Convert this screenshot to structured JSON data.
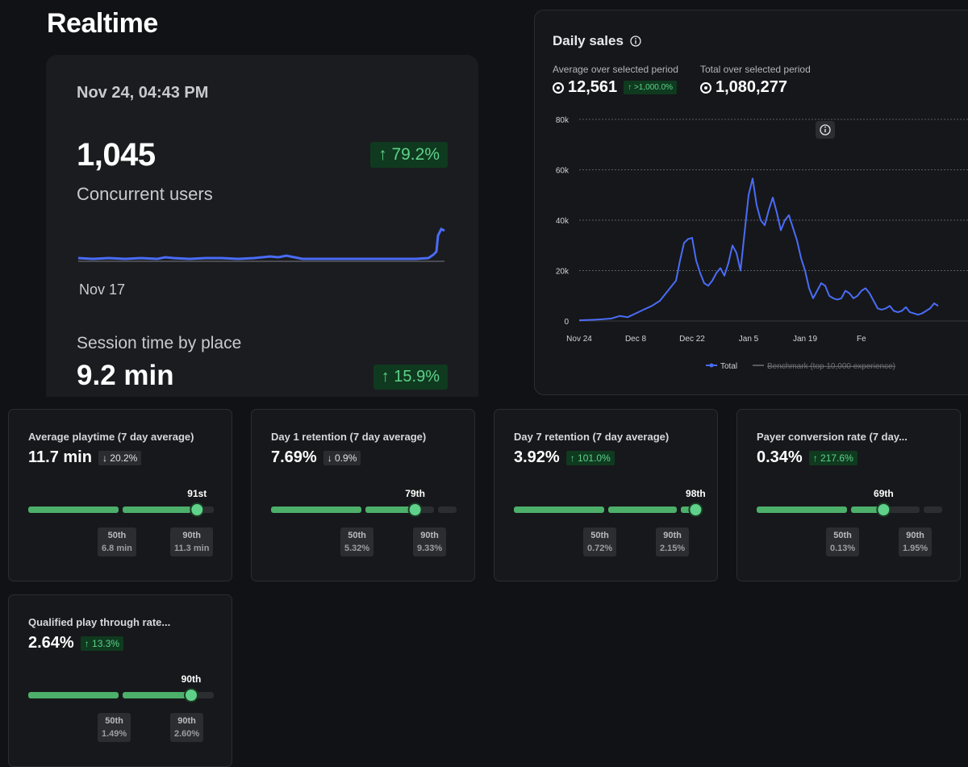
{
  "page": {
    "title": "Realtime"
  },
  "realtime": {
    "date": "Nov 24, 04:43 PM",
    "users_value": "1,045",
    "users_label": "Concurrent users",
    "users_change": "↑ 79.2%",
    "spark_start": "Nov 17",
    "session_label": "Session time by place",
    "session_value": "9.2 min",
    "session_change": "↑ 15.9%"
  },
  "daily_sales": {
    "title": "Daily sales",
    "avg_label": "Average over selected period",
    "avg_value": "12,561",
    "avg_change": "↑ >1,000.0%",
    "total_label": "Total over selected period",
    "total_value": "1,080,277",
    "legend_total": "Total",
    "legend_benchmark": "Benchmark (top 10,000 experience)",
    "x_label_last": "Fe"
  },
  "chart_data": {
    "type": "line",
    "title": "Daily sales",
    "ylim": [
      0,
      80000
    ],
    "y_ticks": [
      "0",
      "20k",
      "40k",
      "60k",
      "80k"
    ],
    "x_ticks": [
      "Nov 24",
      "Dec 8",
      "Dec 22",
      "Jan 5",
      "Jan 19"
    ],
    "grid": true,
    "legend": "bottom",
    "series": [
      {
        "name": "Total",
        "color": "#4a6cf7",
        "x": [
          0,
          2,
          4,
          6,
          8,
          10,
          12,
          14,
          16,
          18,
          20,
          22,
          24,
          25,
          26,
          27,
          28,
          29,
          30,
          31,
          32,
          33,
          34,
          35,
          36,
          37,
          38,
          39,
          40,
          41,
          42,
          43,
          44,
          45,
          46,
          47,
          48,
          49,
          50,
          51,
          52,
          53,
          54,
          55,
          56,
          57,
          58,
          59,
          60,
          61,
          62,
          63,
          64,
          65,
          66,
          67,
          68,
          69,
          70,
          71,
          72,
          73,
          74,
          75,
          76,
          77,
          78,
          79,
          80,
          81,
          82,
          83,
          84,
          85,
          86,
          87,
          88,
          89
        ],
        "y": [
          300,
          400,
          500,
          700,
          1000,
          2000,
          1500,
          3000,
          4500,
          6000,
          8000,
          12000,
          16000,
          24000,
          31000,
          32500,
          33000,
          24000,
          19000,
          15000,
          14000,
          16000,
          19000,
          21000,
          18000,
          23000,
          30000,
          27000,
          20000,
          35000,
          50000,
          56500,
          46000,
          40000,
          38000,
          44000,
          49000,
          43000,
          36000,
          40000,
          42000,
          37000,
          32000,
          25000,
          20000,
          13000,
          9000,
          12000,
          15000,
          14000,
          10000,
          9000,
          8500,
          9000,
          12000,
          11000,
          9000,
          10000,
          12000,
          13000,
          11000,
          8000,
          5000,
          4500,
          5000,
          6000,
          4000,
          3500,
          4000,
          5500,
          3500,
          3000,
          2500,
          3000,
          4000,
          5000,
          7000,
          6000
        ]
      }
    ]
  },
  "metrics": [
    {
      "title": "Average playtime (7 day average)",
      "value": "11.7 min",
      "change": "↓ 20.2%",
      "direction": "down",
      "percentile_label": "91st",
      "percentile": 91,
      "p50_label": "50th",
      "p50_value": "6.8 min",
      "p90_label": "90th",
      "p90_value": "11.3 min"
    },
    {
      "title": "Day 1 retention (7 day average)",
      "value": "7.69%",
      "change": "↓ 0.9%",
      "direction": "down",
      "percentile_label": "79th",
      "percentile": 79,
      "p50_label": "50th",
      "p50_value": "5.32%",
      "p90_label": "90th",
      "p90_value": "9.33%"
    },
    {
      "title": "Day 7 retention (7 day average)",
      "value": "3.92%",
      "change": "↑ 101.0%",
      "direction": "up",
      "percentile_label": "98th",
      "percentile": 98,
      "p50_label": "50th",
      "p50_value": "0.72%",
      "p90_label": "90th",
      "p90_value": "2.15%"
    },
    {
      "title": "Payer conversion rate (7 day...",
      "value": "0.34%",
      "change": "↑ 217.6%",
      "direction": "up",
      "percentile_label": "69th",
      "percentile": 69,
      "p50_label": "50th",
      "p50_value": "0.13%",
      "p90_label": "90th",
      "p90_value": "1.95%"
    },
    {
      "title": "Qualified play through rate...",
      "value": "2.64%",
      "change": "↑ 13.3%",
      "direction": "up",
      "percentile_label": "90th",
      "percentile": 90,
      "p50_label": "50th",
      "p50_value": "1.49%",
      "p90_label": "90th",
      "p90_value": "2.60%"
    }
  ],
  "colors": {
    "accent_line": "#4a6cf7",
    "positive": "#5fd18a",
    "bar_green": "#4caf6a"
  }
}
